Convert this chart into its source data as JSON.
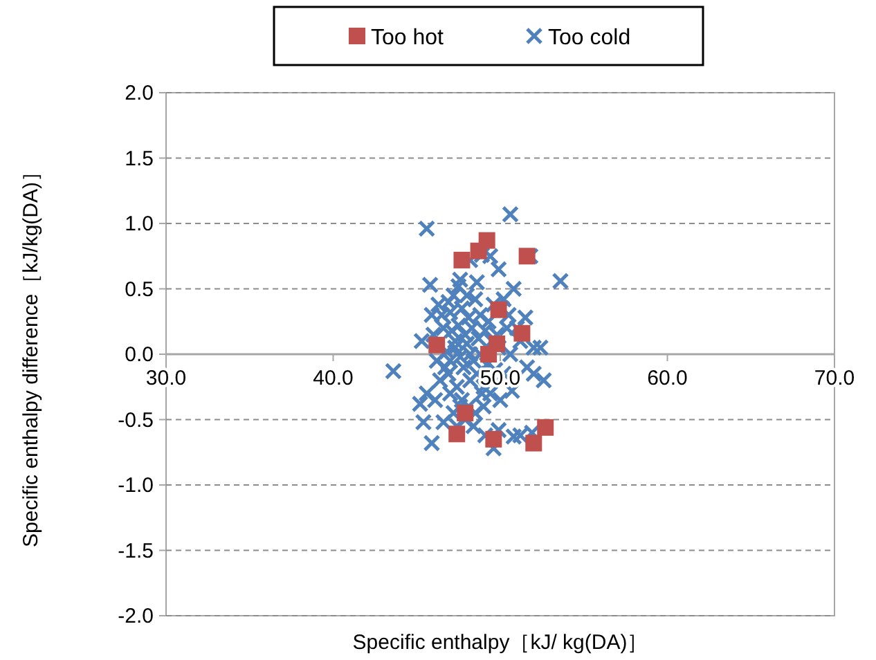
{
  "chart_data": {
    "type": "scatter",
    "xlabel": "Specific enthalpy［kJ/ kg(DA)］",
    "ylabel": "Specific enthalpy difference［kJ/kg(DA)］",
    "xlim": [
      30,
      70
    ],
    "xticks": [
      {
        "value": 30,
        "label": "30.0"
      },
      {
        "value": 40,
        "label": "40.0"
      },
      {
        "value": 50,
        "label": "50.0"
      },
      {
        "value": 60,
        "label": "60.0"
      },
      {
        "value": 70,
        "label": "70.0"
      }
    ],
    "ylim": [
      -2,
      2
    ],
    "yticks": [
      {
        "value": -2,
        "label": "-2.0"
      },
      {
        "value": -1.5,
        "label": "-1.5"
      },
      {
        "value": -1,
        "label": "-1.0"
      },
      {
        "value": -0.5,
        "label": "-0.5"
      },
      {
        "value": 0,
        "label": "0.0"
      },
      {
        "value": 0.5,
        "label": "0.5"
      },
      {
        "value": 1,
        "label": "1.0"
      },
      {
        "value": 1.5,
        "label": "1.5"
      },
      {
        "value": 2,
        "label": "2.0"
      }
    ],
    "grid": "y",
    "legend": "top",
    "series": [
      {
        "name": "Too hot",
        "color": "#c0504d",
        "marker": "square",
        "x": [
          47.7,
          49.2,
          48.7,
          51.6,
          51.3,
          49.9,
          49.8,
          46.2,
          49.3,
          47.4,
          49.6,
          52.0,
          52.7,
          47.9
        ],
        "values": [
          0.72,
          0.87,
          0.79,
          0.75,
          0.16,
          0.34,
          0.08,
          0.07,
          0.0,
          -0.61,
          -0.65,
          -0.68,
          -0.56,
          -0.45
        ]
      },
      {
        "name": "Too cold",
        "color": "#4f81bd",
        "marker": "cross",
        "x": [
          45.6,
          50.6,
          48.9,
          51.8,
          53.6,
          45.8,
          47.6,
          47.5,
          49.9,
          48.2,
          49.4,
          51.5,
          50.2,
          50.8,
          46.3,
          46.9,
          47.2,
          48.5,
          49.6,
          50.1,
          45.9,
          46.5,
          47.0,
          47.7,
          48.1,
          48.8,
          49.3,
          50.4,
          51.2,
          52.0,
          52.4,
          52.0,
          52.6,
          51.6,
          43.6,
          45.3,
          46.0,
          46.6,
          47.1,
          47.5,
          47.9,
          48.3,
          48.7,
          49.1,
          49.5,
          49.9,
          50.6,
          46.2,
          46.8,
          47.3,
          47.6,
          48.0,
          48.4,
          48.8,
          49.2,
          49.7,
          50.2,
          46.4,
          46.9,
          47.4,
          47.8,
          48.2,
          48.6,
          49.0,
          49.4,
          50.0,
          50.7,
          45.6,
          46.1,
          47.0,
          47.7,
          48.1,
          48.5,
          49.0,
          47.2,
          47.9,
          48.4,
          45.4,
          45.9,
          46.6,
          47.4,
          49.1,
          49.6,
          49.9,
          50.8,
          51.2,
          51.9,
          45.2,
          48.0,
          48.6,
          49.8,
          50.5,
          51.0,
          47.3,
          48.9,
          47.6,
          46.7,
          48.2,
          47.0
        ],
        "values": [
          0.96,
          1.07,
          0.76,
          0.75,
          0.56,
          0.53,
          0.57,
          0.52,
          0.65,
          0.72,
          0.75,
          0.28,
          0.42,
          0.5,
          0.38,
          0.4,
          0.45,
          0.42,
          0.38,
          0.35,
          0.3,
          0.3,
          0.32,
          0.35,
          0.28,
          0.3,
          0.25,
          0.2,
          0.1,
          0.05,
          0.05,
          -0.15,
          -0.2,
          -0.1,
          -0.13,
          0.1,
          0.15,
          0.2,
          0.18,
          0.22,
          0.15,
          0.2,
          0.12,
          0.18,
          0.1,
          0.05,
          0.0,
          -0.05,
          0.02,
          0.05,
          -0.02,
          0.08,
          -0.05,
          0.0,
          -0.08,
          -0.12,
          -0.15,
          -0.2,
          -0.15,
          -0.25,
          -0.1,
          -0.2,
          -0.15,
          -0.25,
          -0.3,
          -0.35,
          -0.28,
          -0.3,
          -0.35,
          -0.3,
          -0.35,
          -0.4,
          -0.45,
          -0.4,
          -0.45,
          -0.5,
          -0.55,
          -0.52,
          -0.68,
          -0.52,
          -0.55,
          -0.62,
          -0.72,
          -0.58,
          -0.63,
          -0.62,
          -0.6,
          -0.38,
          0.45,
          0.55,
          0.15,
          0.3,
          0.2,
          0.1,
          -0.3,
          -0.4,
          -0.1,
          0.0,
          -0.05
        ]
      }
    ]
  }
}
